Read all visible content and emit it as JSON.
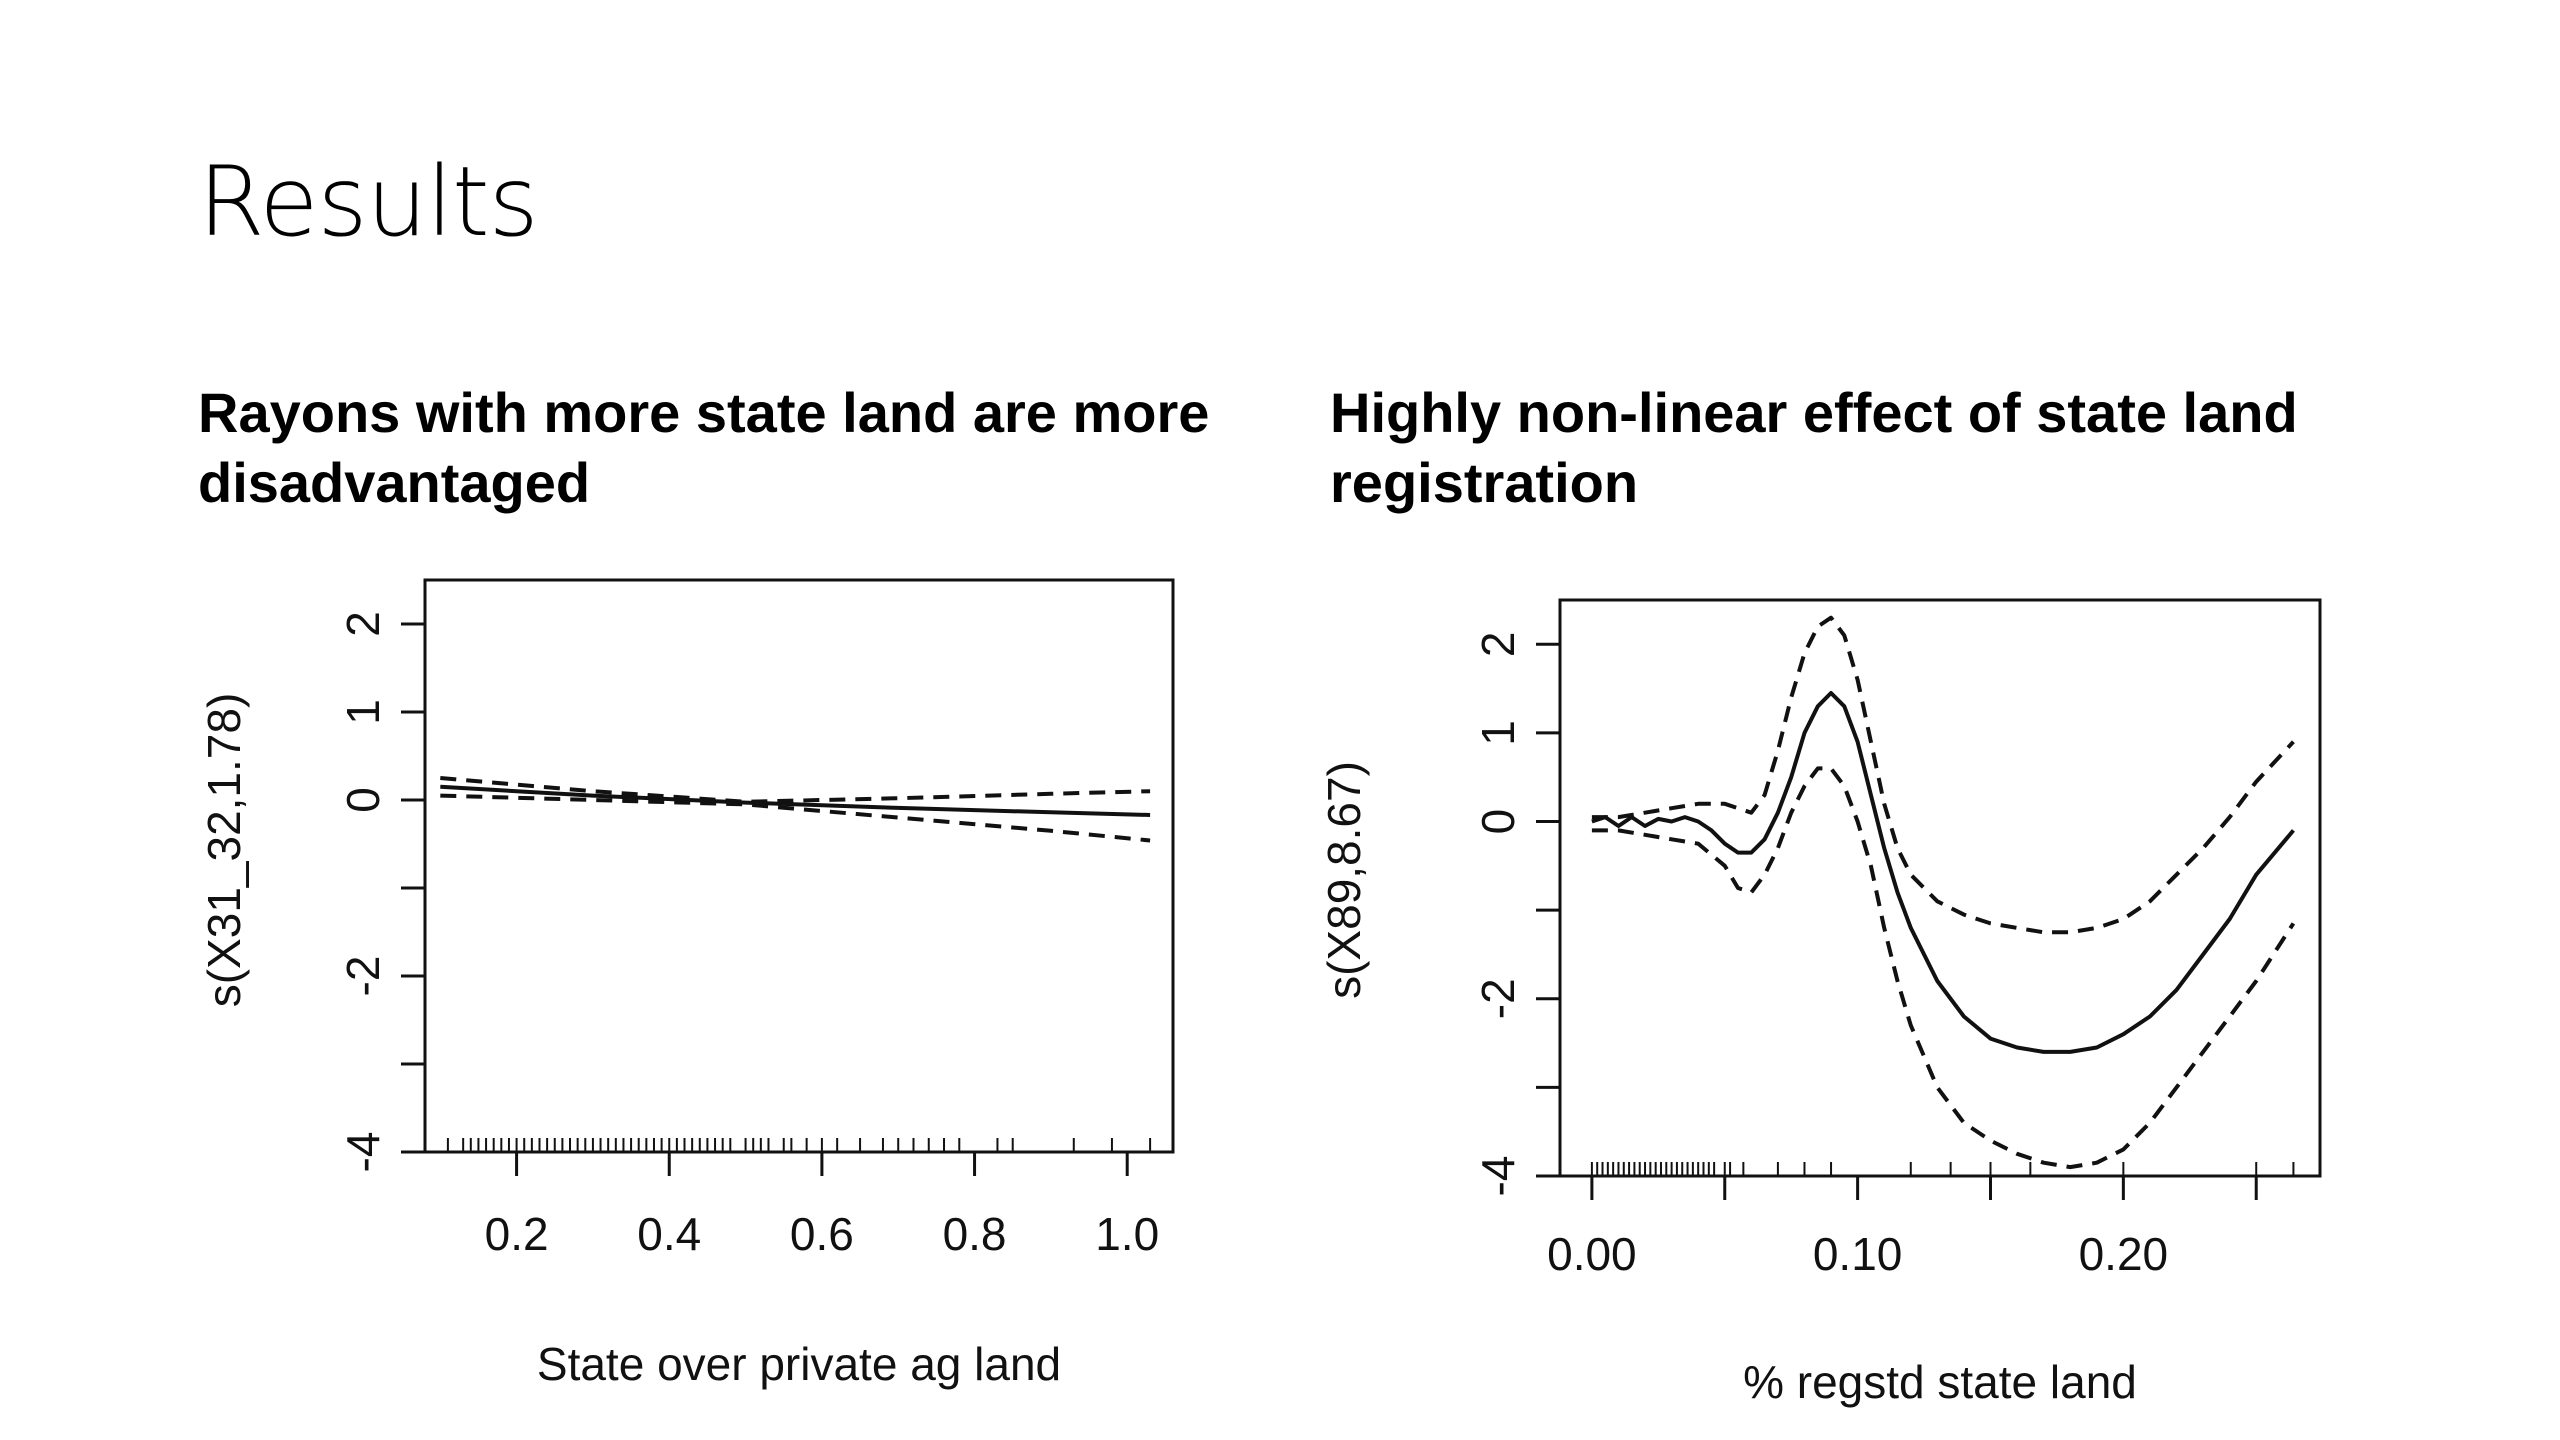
{
  "slide": {
    "title": "Results"
  },
  "chart_data": [
    {
      "type": "line",
      "title": "Rayons with more state land are more disadvantaged",
      "xlabel": "State over private ag land",
      "ylabel": "s(X31_32,1.78)",
      "xlim": [
        0.08,
        1.06
      ],
      "ylim": [
        -4.0,
        2.5
      ],
      "xticks": [
        0.2,
        0.4,
        0.6,
        0.8,
        1.0
      ],
      "xtick_labels": [
        "0.2",
        "0.4",
        "0.6",
        "0.8",
        "1.0"
      ],
      "yticks": [
        -4,
        -3,
        -2,
        -1,
        0,
        1,
        2
      ],
      "ytick_labels": [
        "-4",
        "",
        "-2",
        "",
        "0",
        "1",
        "2"
      ],
      "series": [
        {
          "style": "solid",
          "x": [
            0.1,
            0.3,
            0.5,
            0.7,
            0.9,
            1.03
          ],
          "y": [
            0.15,
            0.05,
            -0.03,
            -0.09,
            -0.14,
            -0.17
          ]
        },
        {
          "style": "dashed",
          "x": [
            0.1,
            0.3,
            0.5,
            0.7,
            0.9,
            1.03
          ],
          "y": [
            0.25,
            0.1,
            -0.02,
            0.02,
            0.07,
            0.1
          ]
        },
        {
          "style": "dashed",
          "x": [
            0.1,
            0.3,
            0.5,
            0.7,
            0.9,
            1.03
          ],
          "y": [
            0.05,
            0.0,
            -0.05,
            -0.2,
            -0.35,
            -0.46
          ]
        }
      ],
      "rug": [
        0.11,
        0.13,
        0.14,
        0.15,
        0.16,
        0.17,
        0.18,
        0.19,
        0.2,
        0.21,
        0.22,
        0.23,
        0.24,
        0.25,
        0.26,
        0.27,
        0.28,
        0.29,
        0.3,
        0.31,
        0.32,
        0.33,
        0.34,
        0.35,
        0.36,
        0.37,
        0.38,
        0.39,
        0.4,
        0.41,
        0.42,
        0.43,
        0.44,
        0.45,
        0.46,
        0.47,
        0.48,
        0.5,
        0.51,
        0.52,
        0.53,
        0.55,
        0.56,
        0.58,
        0.6,
        0.62,
        0.65,
        0.68,
        0.7,
        0.72,
        0.74,
        0.76,
        0.78,
        0.83,
        0.85,
        0.93,
        0.98,
        1.03
      ]
    },
    {
      "type": "line",
      "title": "Highly non-linear effect of state land registration",
      "xlabel": "% regstd state land",
      "ylabel": "s(X89,8.67)",
      "xlim": [
        -0.012,
        0.274
      ],
      "ylim": [
        -4.0,
        2.5
      ],
      "xticks": [
        0.0,
        0.05,
        0.1,
        0.15,
        0.2,
        0.25
      ],
      "xtick_labels": [
        "0.00",
        "",
        "0.10",
        "",
        "0.20",
        ""
      ],
      "yticks": [
        -4,
        -3,
        -2,
        -1,
        0,
        1,
        2
      ],
      "ytick_labels": [
        "-4",
        "",
        "-2",
        "",
        "0",
        "1",
        "2"
      ],
      "series": [
        {
          "style": "solid",
          "x": [
            0.0,
            0.005,
            0.01,
            0.015,
            0.02,
            0.025,
            0.03,
            0.035,
            0.04,
            0.045,
            0.05,
            0.055,
            0.06,
            0.065,
            0.07,
            0.075,
            0.08,
            0.085,
            0.09,
            0.095,
            0.1,
            0.105,
            0.11,
            0.115,
            0.12,
            0.13,
            0.14,
            0.15,
            0.16,
            0.17,
            0.18,
            0.19,
            0.2,
            0.21,
            0.22,
            0.23,
            0.24,
            0.25,
            0.264
          ],
          "y": [
            0.0,
            0.05,
            -0.05,
            0.05,
            -0.05,
            0.03,
            0.0,
            0.05,
            0.0,
            -0.1,
            -0.25,
            -0.35,
            -0.35,
            -0.2,
            0.1,
            0.5,
            1.0,
            1.3,
            1.45,
            1.3,
            0.9,
            0.3,
            -0.3,
            -0.8,
            -1.2,
            -1.8,
            -2.2,
            -2.45,
            -2.55,
            -2.6,
            -2.6,
            -2.55,
            -2.4,
            -2.2,
            -1.9,
            -1.5,
            -1.1,
            -0.6,
            -0.1
          ]
        },
        {
          "style": "dashed",
          "x": [
            0.0,
            0.01,
            0.02,
            0.03,
            0.04,
            0.05,
            0.06,
            0.065,
            0.07,
            0.075,
            0.08,
            0.085,
            0.09,
            0.095,
            0.1,
            0.105,
            0.11,
            0.115,
            0.12,
            0.13,
            0.14,
            0.15,
            0.16,
            0.17,
            0.18,
            0.19,
            0.2,
            0.21,
            0.22,
            0.23,
            0.24,
            0.25,
            0.264
          ],
          "y": [
            0.05,
            0.05,
            0.1,
            0.15,
            0.2,
            0.2,
            0.1,
            0.3,
            0.8,
            1.4,
            1.9,
            2.2,
            2.3,
            2.1,
            1.6,
            0.9,
            0.2,
            -0.3,
            -0.6,
            -0.9,
            -1.05,
            -1.15,
            -1.2,
            -1.25,
            -1.25,
            -1.2,
            -1.1,
            -0.9,
            -0.6,
            -0.3,
            0.05,
            0.45,
            0.9
          ]
        },
        {
          "style": "dashed",
          "x": [
            0.0,
            0.01,
            0.02,
            0.03,
            0.04,
            0.05,
            0.055,
            0.06,
            0.065,
            0.07,
            0.075,
            0.08,
            0.085,
            0.09,
            0.095,
            0.1,
            0.105,
            0.11,
            0.115,
            0.12,
            0.13,
            0.14,
            0.15,
            0.16,
            0.17,
            0.18,
            0.19,
            0.2,
            0.21,
            0.22,
            0.23,
            0.24,
            0.25,
            0.264
          ],
          "y": [
            -0.1,
            -0.1,
            -0.15,
            -0.2,
            -0.25,
            -0.5,
            -0.75,
            -0.8,
            -0.6,
            -0.3,
            0.1,
            0.4,
            0.6,
            0.6,
            0.4,
            0.0,
            -0.5,
            -1.2,
            -1.8,
            -2.3,
            -3.0,
            -3.4,
            -3.6,
            -3.75,
            -3.85,
            -3.9,
            -3.85,
            -3.7,
            -3.4,
            -3.0,
            -2.6,
            -2.2,
            -1.8,
            -1.15
          ]
        }
      ],
      "rug": [
        0.0,
        0.002,
        0.004,
        0.006,
        0.008,
        0.01,
        0.012,
        0.014,
        0.016,
        0.018,
        0.02,
        0.022,
        0.024,
        0.026,
        0.028,
        0.03,
        0.032,
        0.034,
        0.036,
        0.038,
        0.04,
        0.042,
        0.044,
        0.046,
        0.05,
        0.052,
        0.057,
        0.07,
        0.08,
        0.09,
        0.12,
        0.135,
        0.15,
        0.165,
        0.2,
        0.25,
        0.264
      ]
    }
  ]
}
